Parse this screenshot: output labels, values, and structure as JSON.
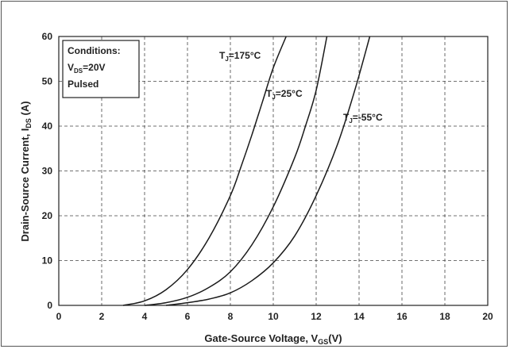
{
  "chart_data": {
    "type": "line",
    "xlabel": {
      "main": "Gate-Source Voltage, V",
      "sub": "GS",
      "unit": "(V)"
    },
    "ylabel": {
      "main": "Drain-Source Current, I",
      "sub": "DS",
      "unit": "(A)"
    },
    "xlim": [
      0,
      20
    ],
    "ylim": [
      0,
      60
    ],
    "xticks": [
      0,
      2,
      4,
      6,
      8,
      10,
      12,
      14,
      16,
      18,
      20
    ],
    "yticks": [
      0,
      10,
      20,
      30,
      40,
      50,
      60
    ],
    "grid": true,
    "grid_style": "dashed",
    "conditions": {
      "title": "Conditions:",
      "line1_main": "V",
      "line1_sub": "DS",
      "line1_value": "=20V",
      "line2": "Pulsed"
    },
    "series": [
      {
        "name": "175",
        "label_prefix": "T",
        "label_sub": "J",
        "label_eq": "=175",
        "label_unit": "°C",
        "x": [
          3.0,
          4.0,
          5.0,
          6.0,
          7.0,
          8.0,
          8.5,
          9.0,
          9.5,
          10.0,
          10.6
        ],
        "y": [
          0,
          1.0,
          3.5,
          8.0,
          15.0,
          24.5,
          31.0,
          38.0,
          45.5,
          53.0,
          60
        ]
      },
      {
        "name": "25",
        "label_prefix": "T",
        "label_sub": "J",
        "label_eq": "=25",
        "label_unit": "°C",
        "x": [
          4.0,
          5.0,
          6.0,
          7.0,
          8.0,
          9.0,
          10.0,
          11.0,
          11.5,
          12.0,
          12.5
        ],
        "y": [
          0,
          0.6,
          1.8,
          4.0,
          7.5,
          13.5,
          22.0,
          33.0,
          40.0,
          48.0,
          60
        ]
      },
      {
        "name": "-55",
        "label_prefix": "T",
        "label_sub": "J",
        "label_eq": "=-55",
        "label_unit": "°C",
        "x": [
          5.0,
          6.0,
          7.0,
          8.0,
          9.0,
          10.0,
          11.0,
          12.0,
          13.0,
          13.8,
          14.5
        ],
        "y": [
          0,
          0.6,
          1.4,
          2.8,
          5.5,
          9.5,
          15.5,
          24.5,
          36.0,
          48.0,
          60
        ]
      }
    ]
  }
}
